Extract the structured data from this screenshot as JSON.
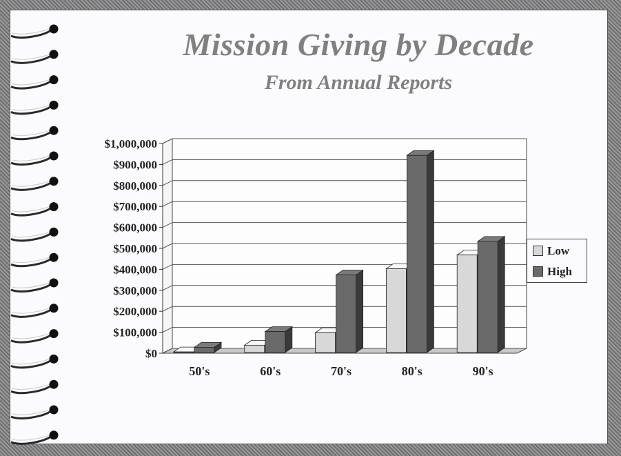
{
  "chart_data": {
    "type": "bar",
    "title": "Mission Giving by Decade",
    "subtitle": "From Annual Reports",
    "xlabel": "",
    "ylabel": "",
    "categories": [
      "50's",
      "60's",
      "70's",
      "80's",
      "90's"
    ],
    "series": [
      {
        "name": "Low",
        "values": [
          3000,
          35000,
          95000,
          400000,
          465000
        ]
      },
      {
        "name": "High",
        "values": [
          25000,
          100000,
          370000,
          940000,
          530000
        ]
      }
    ],
    "ylim": [
      0,
      1000000
    ],
    "yticks": [
      0,
      100000,
      200000,
      300000,
      400000,
      500000,
      600000,
      700000,
      800000,
      900000,
      1000000
    ],
    "ytick_labels": [
      "$0",
      "$100,000",
      "$200,000",
      "$300,000",
      "$400,000",
      "$500,000",
      "$600,000",
      "$700,000",
      "$800,000",
      "$900,000",
      "$1,000,000"
    ],
    "grid": true,
    "legend_position": "right",
    "style": "3d-column"
  },
  "colors": {
    "low": "#d8d8d8",
    "high": "#6a6a6a",
    "title": "#808080"
  }
}
